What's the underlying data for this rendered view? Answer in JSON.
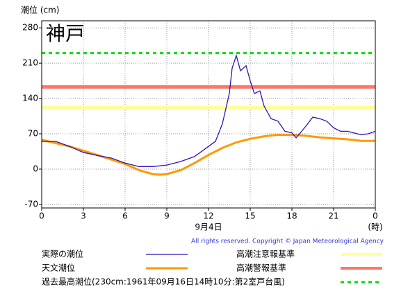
{
  "chart_data": {
    "type": "line",
    "title": "潮位 (cm)",
    "location": "神戸",
    "x_label": "9月4日",
    "x_unit": "(時)",
    "copyright": "All rights reserved. Copyright © Japan Meteorological Agency",
    "xlim": [
      0,
      24
    ],
    "xticks": [
      0,
      3,
      6,
      9,
      12,
      15,
      18,
      21,
      {
        "value": 24,
        "label": "0"
      }
    ],
    "ylim": [
      -77,
      294
    ],
    "yticks": [
      -70,
      0,
      70,
      140,
      210,
      280
    ],
    "grid": true,
    "series": [
      {
        "name": "実際の潮位",
        "color": "#3311bb",
        "x": [
          0,
          1,
          2,
          3,
          4,
          5,
          6,
          7,
          8,
          9,
          10,
          11,
          12,
          12.5,
          13,
          13.5,
          13.7,
          14,
          14.3,
          14.7,
          15,
          15.3,
          15.7,
          16,
          16.5,
          17,
          17.5,
          18,
          18.3,
          18.7,
          19,
          19.5,
          20,
          20.5,
          21,
          21.5,
          22,
          23,
          23.5,
          24
        ],
        "values": [
          55,
          55,
          45,
          33,
          27,
          22,
          12,
          5,
          5,
          8,
          15,
          25,
          45,
          55,
          90,
          150,
          200,
          225,
          195,
          205,
          175,
          150,
          155,
          125,
          100,
          95,
          75,
          72,
          62,
          75,
          85,
          103,
          100,
          95,
          82,
          75,
          75,
          68,
          70,
          75
        ]
      },
      {
        "name": "天文潮位",
        "color": "#ff9900",
        "x": [
          0,
          2,
          4,
          6,
          7,
          8,
          8.5,
          9,
          10,
          11,
          12,
          13,
          14,
          15,
          16,
          17,
          18,
          19,
          20,
          21,
          22,
          23,
          24
        ],
        "values": [
          58,
          45,
          28,
          10,
          -2,
          -10,
          -11,
          -10,
          -2,
          12,
          28,
          42,
          53,
          60,
          65,
          68,
          68,
          66,
          63,
          61,
          59,
          56,
          56
        ]
      }
    ],
    "reference_lines": [
      {
        "name": "高潮注意報基準",
        "color": "#ffff99",
        "value": 122
      },
      {
        "name": "高潮警報基準",
        "color": "#ff7766",
        "value": 163
      },
      {
        "name": "過去最高潮位(230cm:1961年09月16日14時10分:第2室戸台風)",
        "color": "#00dd00",
        "value": 230,
        "dashed": true
      }
    ]
  }
}
